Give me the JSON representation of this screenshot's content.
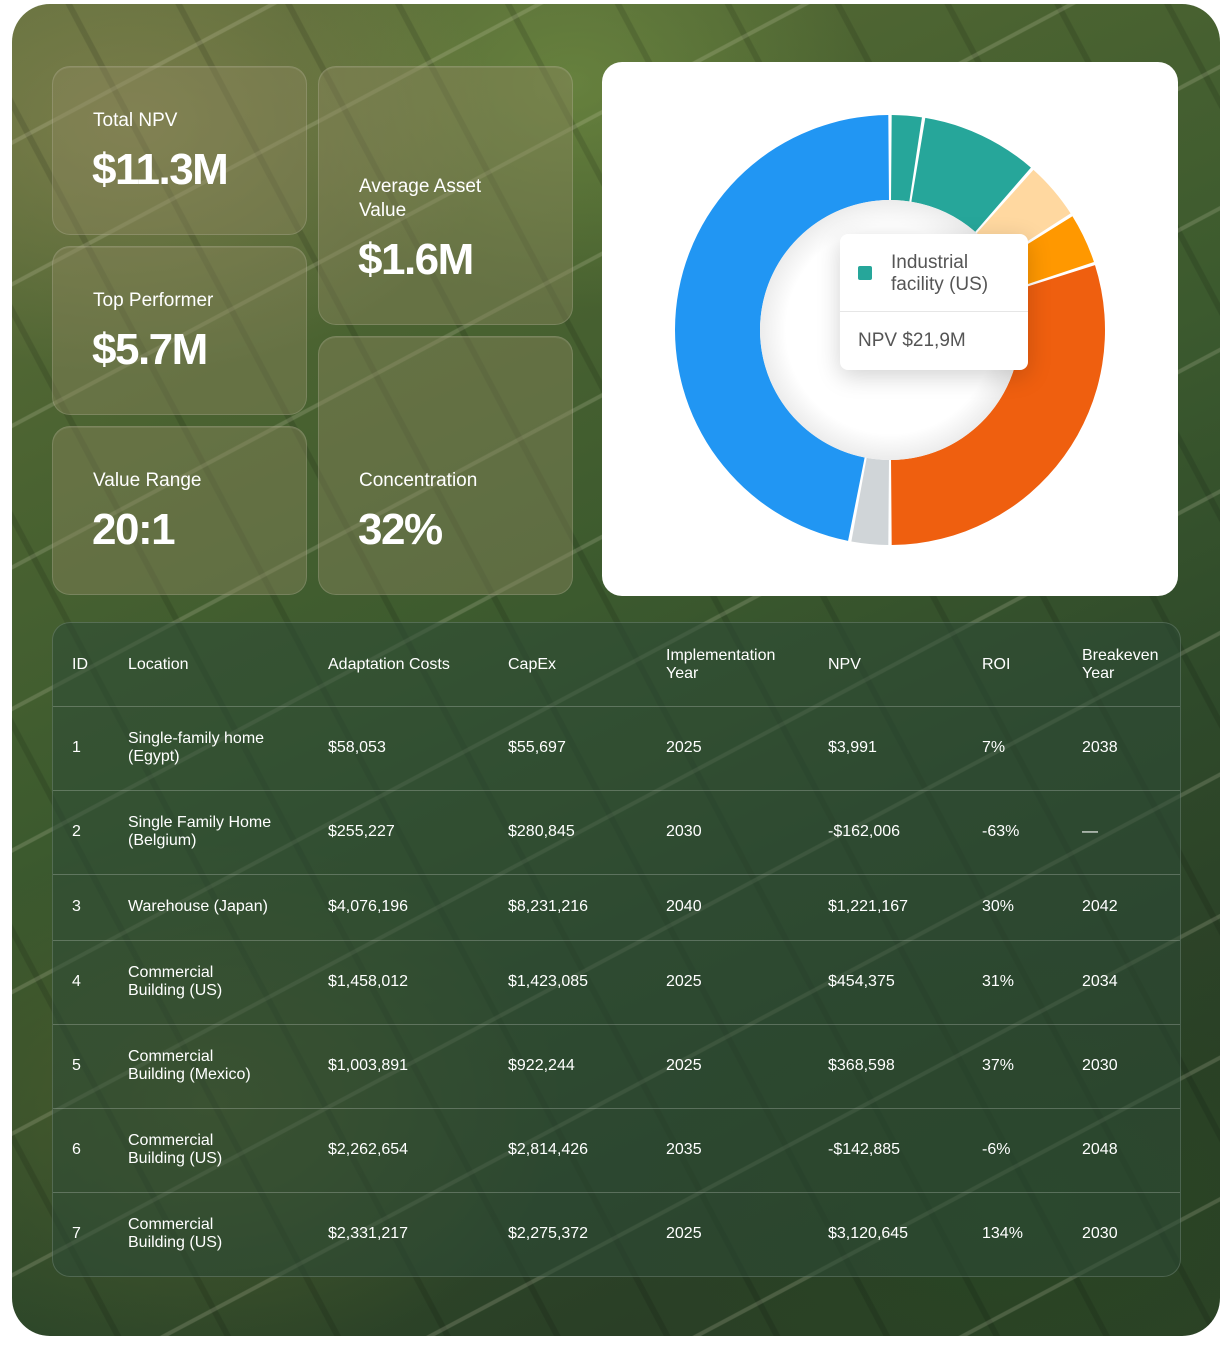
{
  "stats": {
    "total_npv": {
      "label": "Total NPV",
      "value": "$11.3M"
    },
    "top_performer": {
      "label": "Top Performer",
      "value": "$5.7M"
    },
    "value_range": {
      "label": "Value Range",
      "value": "20:1"
    },
    "avg_asset_value": {
      "label_line1": "Average Asset",
      "label_line2": "Value",
      "value": "$1.6M"
    },
    "concentration": {
      "label": "Concentration",
      "value": "32%"
    }
  },
  "chart_data": {
    "type": "pie",
    "variant": "donut",
    "slices": [
      {
        "name": "Industrial facility (US)",
        "value": 2.5,
        "color": "#26a69a"
      },
      {
        "name": "",
        "value": 9.0,
        "color": "#26a69a"
      },
      {
        "name": "",
        "value": 4.5,
        "color": "#ffd8a0"
      },
      {
        "name": "",
        "value": 4.0,
        "color": "#ff9800"
      },
      {
        "name": "",
        "value": 30.0,
        "color": "#ef5f0f"
      },
      {
        "name": "",
        "value": 3.0,
        "color": "#d0d5d8"
      },
      {
        "name": "",
        "value": 47.0,
        "color": "#2196f3"
      }
    ],
    "tooltip": {
      "name_line1": "Industrial",
      "name_line2": "facility (US)",
      "value_text": "NPV $21,9M"
    }
  },
  "table": {
    "headers": {
      "id": "ID",
      "location": "Location",
      "adaptation_costs": "Adaptation Costs",
      "capex": "CapEx",
      "impl_year_line1": "Implementation",
      "impl_year_line2": "Year",
      "npv": "NPV",
      "roi": "ROI",
      "breakeven_line1": "Breakeven",
      "breakeven_line2": "Year"
    },
    "rows": [
      {
        "id": "1",
        "loc1": "Single-family home",
        "loc2": "(Egypt)",
        "adaptation": "$58,053",
        "capex": "$55,697",
        "year": "2025",
        "npv": "$3,991",
        "roi": "7%",
        "breakeven": "2038"
      },
      {
        "id": "2",
        "loc1": "Single Family Home",
        "loc2": "(Belgium)",
        "adaptation": "$255,227",
        "capex": "$280,845",
        "year": "2030",
        "npv": "-$162,006",
        "roi": "-63%",
        "breakeven": "—"
      },
      {
        "id": "3",
        "loc1": "Warehouse (Japan)",
        "loc2": "",
        "adaptation": "$4,076,196",
        "capex": "$8,231,216",
        "year": "2040",
        "npv": "$1,221,167",
        "roi": "30%",
        "breakeven": "2042"
      },
      {
        "id": "4",
        "loc1": "Commercial",
        "loc2": "Building (US)",
        "adaptation": "$1,458,012",
        "capex": "$1,423,085",
        "year": "2025",
        "npv": "$454,375",
        "roi": "31%",
        "breakeven": "2034"
      },
      {
        "id": "5",
        "loc1": "Commercial",
        "loc2": "Building (Mexico)",
        "adaptation": "$1,003,891",
        "capex": "$922,244",
        "year": "2025",
        "npv": "$368,598",
        "roi": "37%",
        "breakeven": "2030"
      },
      {
        "id": "6",
        "loc1": "Commercial",
        "loc2": "Building (US)",
        "adaptation": "$2,262,654",
        "capex": "$2,814,426",
        "year": "2035",
        "npv": "-$142,885",
        "roi": "-6%",
        "breakeven": "2048"
      },
      {
        "id": "7",
        "loc1": "Commercial",
        "loc2": "Building (US)",
        "adaptation": "$2,331,217",
        "capex": "$2,275,372",
        "year": "2025",
        "npv": "$3,120,645",
        "roi": "134%",
        "breakeven": "2030"
      }
    ]
  }
}
